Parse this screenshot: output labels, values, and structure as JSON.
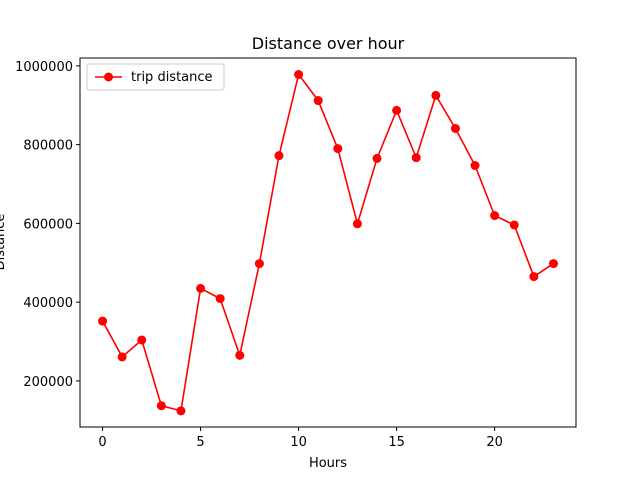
{
  "chart_data": {
    "type": "line",
    "title": "Distance over hour",
    "xlabel": "Hours",
    "ylabel": "Distance",
    "xlim": [
      -1.15,
      24.15
    ],
    "ylim": [
      83000,
      1020000
    ],
    "x_ticks": [
      0,
      5,
      10,
      15,
      20
    ],
    "x_tick_labels": [
      "0",
      "5",
      "10",
      "15",
      "20"
    ],
    "y_ticks": [
      200000,
      400000,
      600000,
      800000,
      1000000
    ],
    "y_tick_labels": [
      "200000",
      "400000",
      "600000",
      "800000",
      "1000000"
    ],
    "grid": false,
    "legend": {
      "position": "top-left"
    },
    "series": [
      {
        "name": "trip distance",
        "color": "#ff0000",
        "marker": "circle",
        "x": [
          0,
          1,
          2,
          3,
          4,
          5,
          6,
          7,
          8,
          9,
          10,
          11,
          12,
          13,
          14,
          15,
          16,
          17,
          18,
          19,
          20,
          21,
          22,
          23
        ],
        "values": [
          352000,
          261000,
          304000,
          137000,
          124000,
          435000,
          409000,
          265000,
          498000,
          772000,
          978000,
          912000,
          790000,
          599000,
          765000,
          887000,
          767000,
          925000,
          841000,
          747000,
          620000,
          596000,
          465000,
          498000
        ]
      }
    ]
  }
}
